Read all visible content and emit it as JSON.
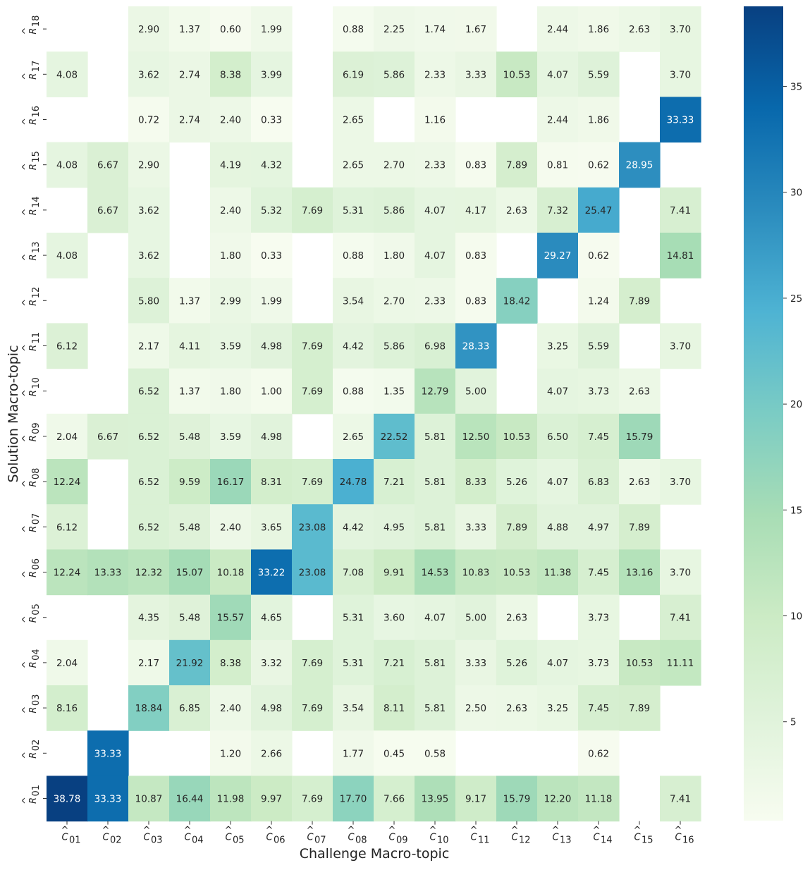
{
  "chart_data": {
    "type": "heatmap",
    "xlabel": "Challenge Macro-topic",
    "ylabel": "Solution Macro-topic",
    "x_categories": [
      "01",
      "02",
      "03",
      "04",
      "05",
      "06",
      "07",
      "08",
      "09",
      "10",
      "11",
      "12",
      "13",
      "14",
      "15",
      "16"
    ],
    "x_category_prefix": "C",
    "y_categories": [
      "18",
      "17",
      "16",
      "15",
      "14",
      "13",
      "12",
      "11",
      "10",
      "09",
      "08",
      "07",
      "06",
      "05",
      "04",
      "03",
      "02",
      "01"
    ],
    "y_category_prefix": "R",
    "values": [
      [
        null,
        null,
        2.9,
        1.37,
        0.6,
        1.99,
        null,
        0.88,
        2.25,
        1.74,
        1.67,
        null,
        2.44,
        1.86,
        2.63,
        3.7
      ],
      [
        4.08,
        null,
        3.62,
        2.74,
        8.38,
        3.99,
        null,
        6.19,
        5.86,
        2.33,
        3.33,
        10.53,
        4.07,
        5.59,
        null,
        3.7
      ],
      [
        null,
        null,
        0.72,
        2.74,
        2.4,
        0.33,
        null,
        2.65,
        null,
        1.16,
        null,
        null,
        2.44,
        1.86,
        null,
        33.33
      ],
      [
        4.08,
        6.67,
        2.9,
        null,
        4.19,
        4.32,
        null,
        2.65,
        2.7,
        2.33,
        0.83,
        7.89,
        0.81,
        0.62,
        28.95,
        null
      ],
      [
        null,
        6.67,
        3.62,
        null,
        2.4,
        5.32,
        7.69,
        5.31,
        5.86,
        4.07,
        4.17,
        2.63,
        7.32,
        25.47,
        null,
        7.41
      ],
      [
        4.08,
        null,
        3.62,
        null,
        1.8,
        0.33,
        null,
        0.88,
        1.8,
        4.07,
        0.83,
        null,
        29.27,
        0.62,
        null,
        14.81
      ],
      [
        null,
        null,
        5.8,
        1.37,
        2.99,
        1.99,
        null,
        3.54,
        2.7,
        2.33,
        0.83,
        18.42,
        null,
        1.24,
        7.89,
        null
      ],
      [
        6.12,
        null,
        2.17,
        4.11,
        3.59,
        4.98,
        7.69,
        4.42,
        5.86,
        6.98,
        28.33,
        null,
        3.25,
        5.59,
        null,
        3.7
      ],
      [
        null,
        null,
        6.52,
        1.37,
        1.8,
        1.0,
        7.69,
        0.88,
        1.35,
        12.79,
        5.0,
        null,
        4.07,
        3.73,
        2.63,
        null
      ],
      [
        2.04,
        6.67,
        6.52,
        5.48,
        3.59,
        4.98,
        null,
        2.65,
        22.52,
        5.81,
        12.5,
        10.53,
        6.5,
        7.45,
        15.79,
        null
      ],
      [
        12.24,
        null,
        6.52,
        9.59,
        16.17,
        8.31,
        7.69,
        24.78,
        7.21,
        5.81,
        8.33,
        5.26,
        4.07,
        6.83,
        2.63,
        3.7
      ],
      [
        6.12,
        null,
        6.52,
        5.48,
        2.4,
        3.65,
        23.08,
        4.42,
        4.95,
        5.81,
        3.33,
        7.89,
        4.88,
        4.97,
        7.89,
        null
      ],
      [
        12.24,
        13.33,
        12.32,
        15.07,
        10.18,
        33.22,
        23.08,
        7.08,
        9.91,
        14.53,
        10.83,
        10.53,
        11.38,
        7.45,
        13.16,
        3.7
      ],
      [
        null,
        null,
        4.35,
        5.48,
        15.57,
        4.65,
        null,
        5.31,
        3.6,
        4.07,
        5.0,
        2.63,
        null,
        3.73,
        null,
        7.41
      ],
      [
        2.04,
        null,
        2.17,
        21.92,
        8.38,
        3.32,
        7.69,
        5.31,
        7.21,
        5.81,
        3.33,
        5.26,
        4.07,
        3.73,
        10.53,
        11.11
      ],
      [
        8.16,
        null,
        18.84,
        6.85,
        2.4,
        4.98,
        7.69,
        3.54,
        8.11,
        5.81,
        2.5,
        2.63,
        3.25,
        7.45,
        7.89,
        null
      ],
      [
        null,
        33.33,
        null,
        null,
        1.2,
        2.66,
        null,
        1.77,
        0.45,
        0.58,
        null,
        null,
        null,
        0.62,
        null,
        null
      ],
      [
        38.78,
        33.33,
        10.87,
        16.44,
        11.98,
        9.97,
        7.69,
        17.7,
        7.66,
        13.95,
        9.17,
        15.79,
        12.2,
        11.18,
        null,
        7.41
      ]
    ],
    "colorscale": "GnBu",
    "colors": [
      "#f7fcf0",
      "#e0f3db",
      "#ccebc5",
      "#a8ddb5",
      "#7bccc4",
      "#4eb3d3",
      "#2b8cbe",
      "#0868ac",
      "#084081"
    ],
    "vmin": 0.33,
    "vmax": 38.78,
    "colorbar_ticks": [
      5,
      10,
      15,
      20,
      25,
      30,
      35
    ],
    "annotation_format": "0.00",
    "legend": "colorbar right"
  }
}
